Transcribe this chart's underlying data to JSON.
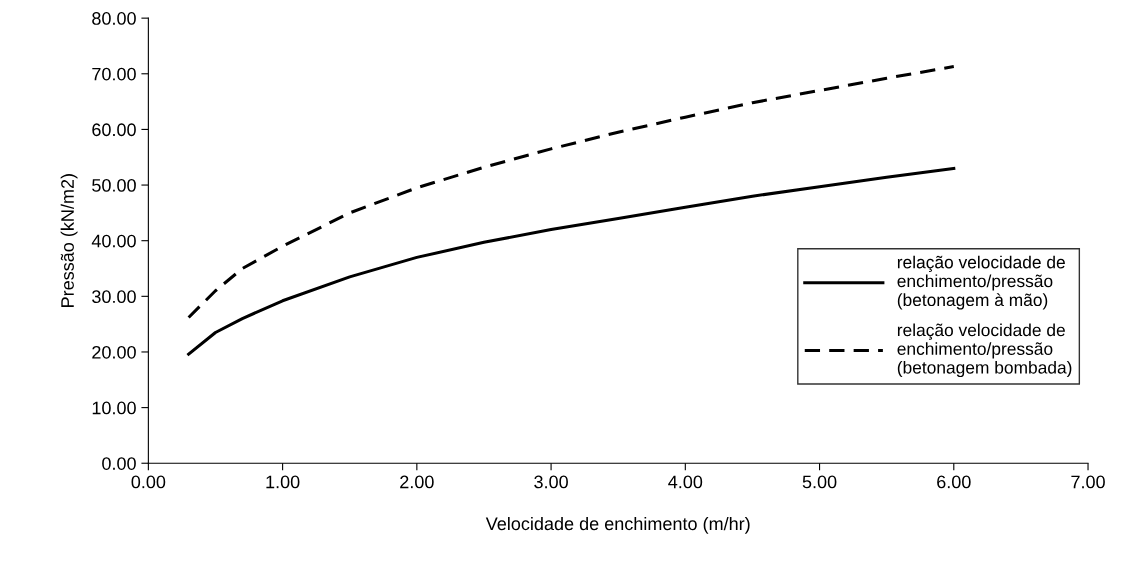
{
  "chart_data": {
    "type": "line",
    "xlabel": "Velocidade de enchimento (m/hr)",
    "ylabel": "Pressão (kN/m2)",
    "xlim": [
      0,
      7
    ],
    "ylim": [
      0,
      80
    ],
    "xticks": [
      {
        "value": 0,
        "label": "0.00"
      },
      {
        "value": 1,
        "label": "1.00"
      },
      {
        "value": 2,
        "label": "2.00"
      },
      {
        "value": 3,
        "label": "3.00"
      },
      {
        "value": 4,
        "label": "4.00"
      },
      {
        "value": 5,
        "label": "5.00"
      },
      {
        "value": 6,
        "label": "6.00"
      },
      {
        "value": 7,
        "label": "7.00"
      }
    ],
    "yticks": [
      {
        "value": 0,
        "label": "0.00"
      },
      {
        "value": 10,
        "label": "10.00"
      },
      {
        "value": 20,
        "label": "20.00"
      },
      {
        "value": 30,
        "label": "30.00"
      },
      {
        "value": 40,
        "label": "40.00"
      },
      {
        "value": 50,
        "label": "50.00"
      },
      {
        "value": 60,
        "label": "60.00"
      },
      {
        "value": 70,
        "label": "70.00"
      },
      {
        "value": 80,
        "label": "80.00"
      }
    ],
    "grid": false,
    "legend": "right",
    "marker": "none",
    "series": [
      {
        "name": "relação velocidade de\nenchimento/pressão\n(betonagem à mão)",
        "color": "#000000",
        "line_style": "solid",
        "x": [
          0.3,
          0.5,
          0.7,
          1.0,
          1.5,
          2.0,
          2.5,
          3.0,
          3.5,
          4.0,
          4.5,
          5.0,
          5.5,
          6.0
        ],
        "values": [
          19.6,
          23.5,
          26.0,
          29.2,
          33.5,
          37.0,
          39.7,
          42.0,
          44.0,
          46.0,
          48.0,
          49.7,
          51.4,
          53.0
        ]
      },
      {
        "name": "relação velocidade de\nenchimento/pressão\n(betonagem bombada)",
        "color": "#000000",
        "line_style": "dashed",
        "x": [
          0.3,
          0.5,
          0.7,
          1.0,
          1.5,
          2.0,
          2.5,
          3.0,
          3.5,
          4.0,
          4.5,
          5.0,
          5.5,
          6.0
        ],
        "values": [
          26.2,
          31.0,
          35.0,
          39.0,
          45.0,
          49.5,
          53.2,
          56.5,
          59.5,
          62.2,
          64.8,
          67.0,
          69.2,
          71.3
        ]
      }
    ]
  }
}
